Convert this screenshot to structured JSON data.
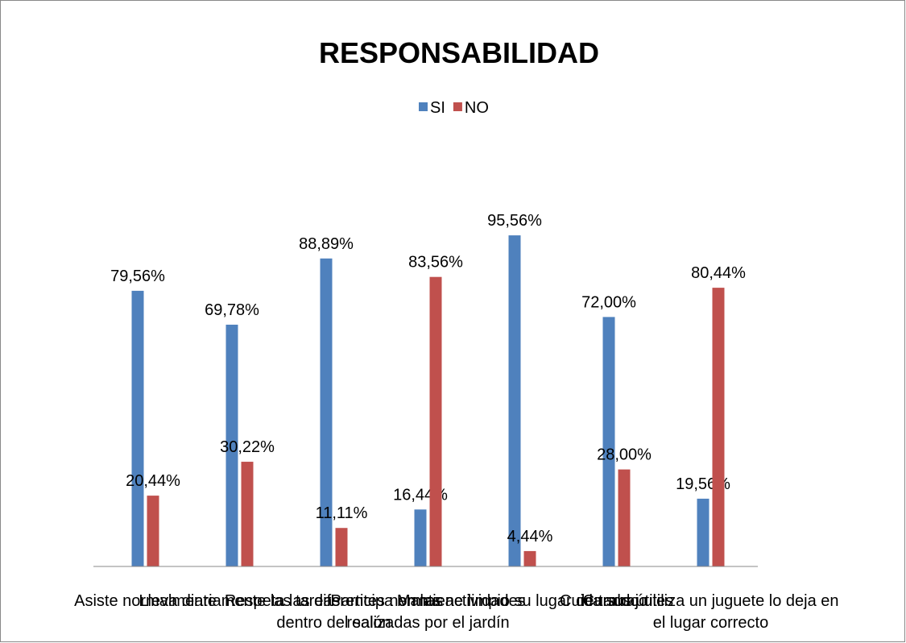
{
  "chart_data": {
    "type": "bar",
    "title": "RESPONSABILIDAD",
    "categories": [
      "Asiste normalmente",
      "Lleva diariamente las tareas",
      "Respeta las diferentes normas dentro del salón",
      "Participa en las actividades realizadas por el jardín",
      "Mantiene limpio su lugar de trabajo",
      "Cuida sus útiles",
      "Cuando utiliza un juguete lo deja en el lugar correcto"
    ],
    "series": [
      {
        "name": "SI",
        "color": "#4f81bd",
        "values": [
          79.56,
          69.78,
          88.89,
          16.44,
          95.56,
          72.0,
          19.56
        ],
        "value_labels": [
          "79,56%",
          "69,78%",
          "88,89%",
          "16,44%",
          "95,56%",
          "72,00%",
          "19,56%"
        ]
      },
      {
        "name": "NO",
        "color": "#c0504d",
        "values": [
          20.44,
          30.22,
          11.11,
          83.56,
          4.44,
          28.0,
          80.44
        ],
        "value_labels": [
          "20,44%",
          "30,22%",
          "11,11%",
          "83,56%",
          "4,44%",
          "28,00%",
          "80,44%"
        ]
      }
    ],
    "ylim": [
      0,
      100
    ],
    "legend": "top"
  }
}
